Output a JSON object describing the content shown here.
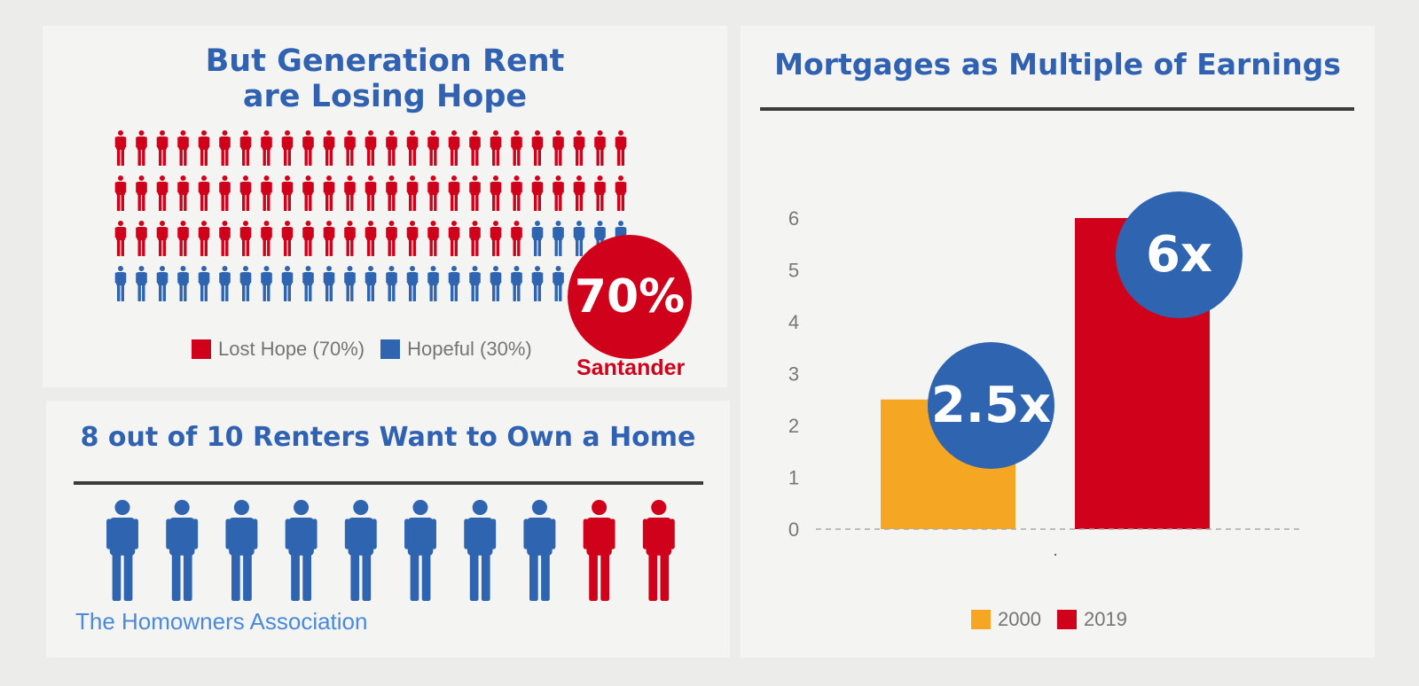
{
  "hope_panel": {
    "title_line1": "But Generation Rent",
    "title_line2": "are Losing Hope",
    "badge": "70%",
    "source": "Santander",
    "colors": {
      "lost": "#d0021b",
      "hopeful": "#2f64b0"
    },
    "icon": "person-icon",
    "chart_data": {
      "type": "pictogram",
      "series": [
        {
          "name": "Lost Hope (70%)",
          "value": 70
        },
        {
          "name": "Hopeful (30%)",
          "value": 30
        }
      ]
    }
  },
  "renters_panel": {
    "title": "8 out of 10 Renters Want to Own a Home",
    "source": "The Homowners Association",
    "icon": "person-icon",
    "colors": {
      "want": "#2f64b0",
      "other": "#d0021b"
    },
    "chart_data": {
      "type": "pictogram",
      "want_to_own": 8,
      "total": 10
    }
  },
  "mortgage_panel": {
    "title": "Mortgages as Multiple of Earnings",
    "colors": {
      "2000": "#f5a623",
      "2019": "#d0021b",
      "badge": "#2f64b0"
    },
    "badges": [
      "2.5x",
      "6x"
    ],
    "chart_data": {
      "type": "bar",
      "categories": [
        "."
      ],
      "series": [
        {
          "name": "2000",
          "values": [
            2.5
          ]
        },
        {
          "name": "2019",
          "values": [
            6
          ]
        }
      ],
      "ylim": [
        0,
        6
      ],
      "yticks": [
        "0",
        "1",
        "2",
        "3",
        "4",
        "5",
        "6"
      ],
      "legend": "bottom",
      "grid": false
    }
  }
}
